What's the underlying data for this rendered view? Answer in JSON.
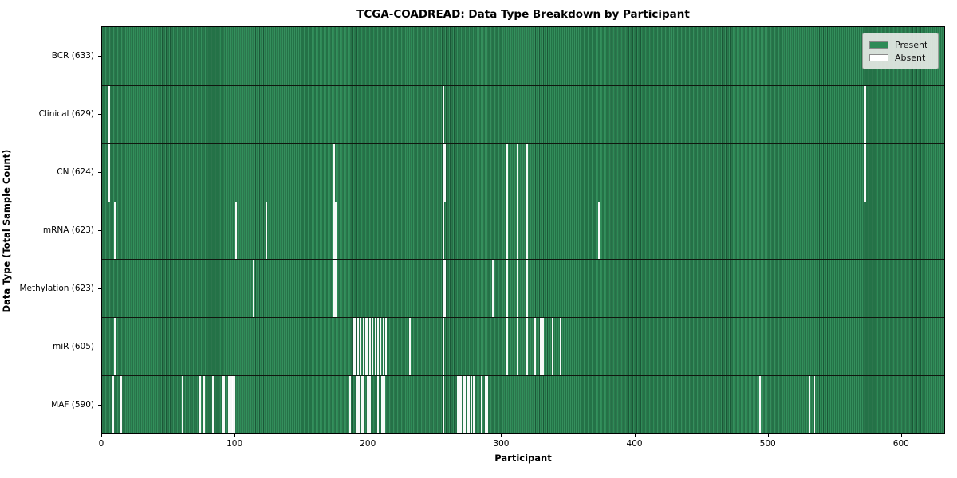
{
  "title": "TCGA-COADREAD: Data Type Breakdown by Participant",
  "x_axis": {
    "label": "Participant",
    "ticks": [
      0,
      100,
      200,
      300,
      400,
      500,
      600
    ],
    "range": [
      0,
      633
    ]
  },
  "y_axis": {
    "label": "Data Type (Total Sample Count)"
  },
  "legend": {
    "present_label": "Present",
    "absent_label": "Absent"
  },
  "colors": {
    "present": "#2e8b57",
    "absent": "#ffffff",
    "row_separator": "#10170f",
    "legend_bg": "#e5e8e5"
  },
  "chart_data": {
    "type": "heatmap",
    "title": "TCGA-COADREAD: Data Type Breakdown by Participant",
    "xlabel": "Participant",
    "ylabel": "Data Type (Total Sample Count)",
    "n_participants": 633,
    "xlim": [
      0,
      633
    ],
    "legend_position": "upper right",
    "value_encoding": {
      "present": "#2e8b57",
      "absent": "#ffffff"
    },
    "rows": [
      {
        "label": "BCR (633)",
        "name": "BCR",
        "present_count": 633,
        "absent_indices": []
      },
      {
        "label": "Clinical (629)",
        "name": "Clinical",
        "present_count": 629,
        "absent_indices": [
          5,
          7,
          256,
          573
        ]
      },
      {
        "label": "CN (624)",
        "name": "CN",
        "present_count": 624,
        "absent_indices": [
          5,
          7,
          174,
          256,
          257,
          304,
          312,
          319,
          573
        ]
      },
      {
        "label": "mRNA (623)",
        "name": "mRNA",
        "present_count": 623,
        "absent_indices": [
          9,
          100,
          123,
          174,
          175,
          256,
          304,
          312,
          319,
          373
        ]
      },
      {
        "label": "Methylation (623)",
        "name": "Methylation",
        "present_count": 623,
        "absent_indices": [
          113,
          174,
          175,
          256,
          257,
          293,
          304,
          312,
          319,
          321
        ]
      },
      {
        "label": "miR (605)",
        "name": "miR",
        "present_count": 605,
        "absent_indices": [
          9,
          140,
          173,
          189,
          190,
          192,
          194,
          196,
          198,
          199,
          201,
          203,
          205,
          207,
          209,
          211,
          213,
          231,
          256,
          304,
          312,
          319,
          325,
          327,
          329,
          331,
          338,
          344
        ]
      },
      {
        "label": "MAF (590)",
        "name": "MAF",
        "present_count": 590,
        "absent_indices": [
          8,
          14,
          60,
          73,
          76,
          83,
          90,
          91,
          95,
          96,
          97,
          98,
          99,
          176,
          186,
          191,
          192,
          193,
          195,
          196,
          199,
          200,
          201,
          207,
          210,
          211,
          212,
          256,
          267,
          268,
          269,
          271,
          272,
          274,
          275,
          277,
          279,
          285,
          288,
          289,
          494,
          531,
          535
        ]
      }
    ]
  }
}
